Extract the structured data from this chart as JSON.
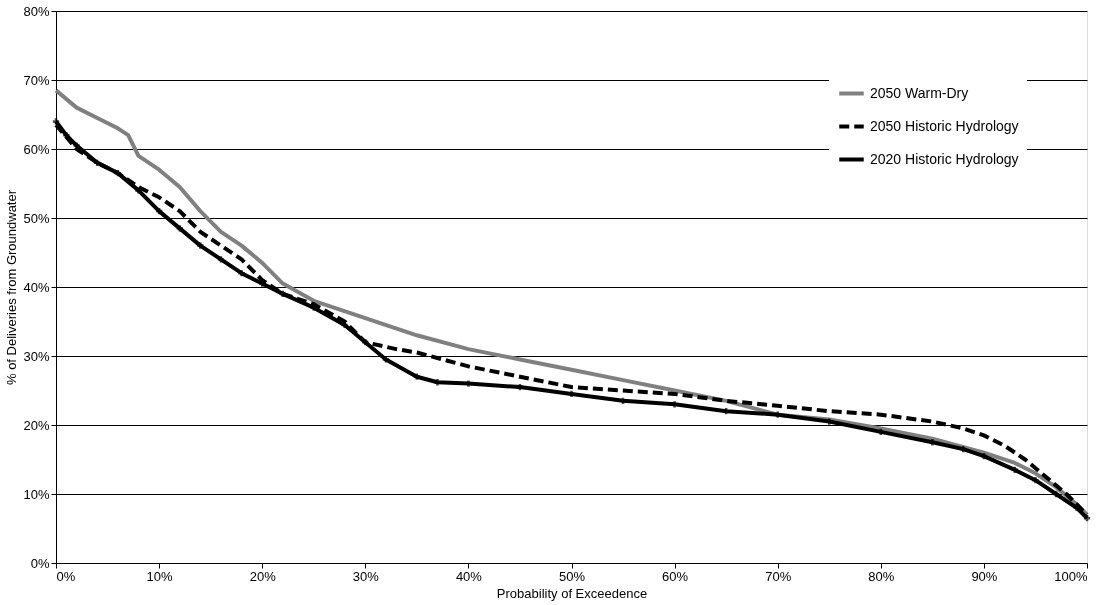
{
  "chart_data": {
    "type": "line",
    "xlabel": "Probability of Exceedence",
    "ylabel": "% of Deliveries from Groundwater",
    "xlim": [
      0,
      100
    ],
    "ylim": [
      0,
      80
    ],
    "xticks": [
      {
        "value": 0,
        "label": "0%"
      },
      {
        "value": 10,
        "label": "10%"
      },
      {
        "value": 20,
        "label": "20%"
      },
      {
        "value": 30,
        "label": "30%"
      },
      {
        "value": 40,
        "label": "40%"
      },
      {
        "value": 50,
        "label": "50%"
      },
      {
        "value": 60,
        "label": "60%"
      },
      {
        "value": 70,
        "label": "70%"
      },
      {
        "value": 80,
        "label": "80%"
      },
      {
        "value": 90,
        "label": "90%"
      },
      {
        "value": 100,
        "label": "100%"
      }
    ],
    "yticks": [
      {
        "value": 0,
        "label": "0%"
      },
      {
        "value": 10,
        "label": "10%"
      },
      {
        "value": 20,
        "label": "20%"
      },
      {
        "value": 30,
        "label": "30%"
      },
      {
        "value": 40,
        "label": "40%"
      },
      {
        "value": 50,
        "label": "50%"
      },
      {
        "value": 60,
        "label": "60%"
      },
      {
        "value": 70,
        "label": "70%"
      },
      {
        "value": 80,
        "label": "80%"
      }
    ],
    "grid": "y",
    "legend": "top right",
    "series": [
      {
        "name": "2050 Warm-Dry",
        "color": "#808080",
        "line_style": "solid",
        "marker": "none",
        "x": [
          0,
          2,
          4,
          6,
          7,
          8,
          10,
          12,
          14,
          16,
          18,
          20,
          22,
          25,
          30,
          35,
          40,
          45,
          50,
          55,
          60,
          65,
          70,
          75,
          80,
          85,
          90,
          93,
          95,
          97,
          99,
          100
        ],
        "values": [
          68.5,
          66,
          64.5,
          63,
          62,
          59,
          57,
          54.5,
          51,
          48,
          46,
          43.5,
          40.5,
          38,
          35.5,
          33,
          31,
          29.5,
          28,
          26.5,
          25,
          23.5,
          21.5,
          20.8,
          19.5,
          18,
          16,
          14.5,
          13,
          11,
          8.5,
          7
        ]
      },
      {
        "name": "2050 Historic Hydrology",
        "color": "#000000",
        "line_style": "dashed",
        "marker": "none",
        "x": [
          0,
          2,
          4,
          6,
          8,
          10,
          12,
          14,
          16,
          18,
          20,
          22,
          25,
          28,
          30,
          33,
          35,
          40,
          45,
          50,
          55,
          60,
          65,
          70,
          75,
          80,
          85,
          88,
          90,
          92,
          94,
          96,
          98,
          100
        ],
        "values": [
          63.5,
          60,
          58,
          56.5,
          54.5,
          53,
          51,
          48,
          46,
          44,
          41,
          39,
          37.5,
          35,
          32,
          31,
          30.5,
          28.5,
          27,
          25.5,
          25,
          24.5,
          23.5,
          22.8,
          22,
          21.5,
          20.5,
          19.5,
          18.5,
          17,
          15,
          12.5,
          10,
          7
        ]
      },
      {
        "name": "2020 Historic Hydrology",
        "color": "#000000",
        "line_style": "solid",
        "marker": "cross",
        "x": [
          0,
          1,
          2,
          4,
          6,
          8,
          10,
          12,
          14,
          16,
          18,
          20,
          22,
          25,
          28,
          30,
          32,
          35,
          37,
          40,
          45,
          50,
          55,
          60,
          65,
          70,
          75,
          80,
          85,
          88,
          90,
          93,
          95,
          97,
          99,
          100
        ],
        "values": [
          64,
          62,
          60.5,
          58,
          56.5,
          54,
          51,
          48.5,
          46,
          44,
          42,
          40.5,
          39,
          37,
          34.5,
          32,
          29.5,
          27,
          26.2,
          26,
          25.5,
          24.5,
          23.5,
          23,
          22,
          21.5,
          20.5,
          19,
          17.5,
          16.5,
          15.5,
          13.5,
          12,
          10,
          8,
          6.5
        ]
      }
    ]
  }
}
